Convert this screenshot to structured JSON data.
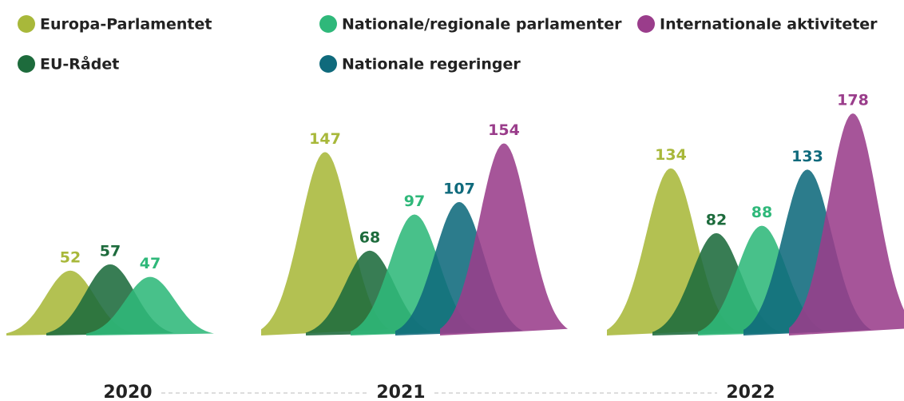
{
  "chart_data": {
    "type": "peak",
    "categories": [
      "2020",
      "2021",
      "2022"
    ],
    "series": [
      {
        "name": "Europa-Parlamentet",
        "color": "#a8b83a",
        "values": [
          52,
          147,
          134
        ]
      },
      {
        "name": "EU-Rådet",
        "color": "#1d6b3c",
        "values": [
          57,
          68,
          82
        ]
      },
      {
        "name": "Nationale/regionale parlamenter",
        "color": "#2fb87a",
        "values": [
          47,
          97,
          88
        ]
      },
      {
        "name": "Nationale regeringer",
        "color": "#0f6a7c",
        "values": [
          null,
          107,
          133
        ]
      },
      {
        "name": "Internationale aktiviteter",
        "color": "#9a3d8b",
        "values": [
          null,
          154,
          178
        ]
      }
    ]
  }
}
